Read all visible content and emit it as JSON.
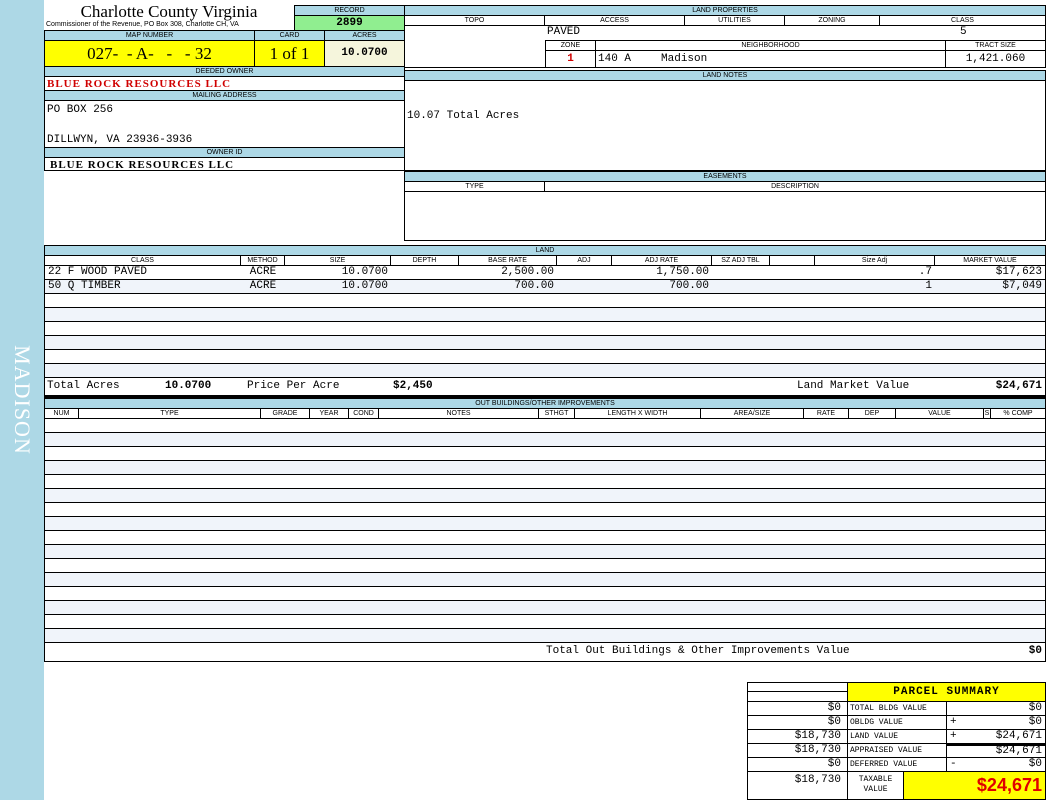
{
  "sidebar": {
    "label": "MADISON",
    "color": "#add8e6"
  },
  "header": {
    "title": "Charlotte County Virginia",
    "subtitle": "Commissioner of the Revenue, PO Box 308, Charlotte CH, VA"
  },
  "record": {
    "label": "RECORD",
    "value": "2899"
  },
  "map": {
    "map_label": "MAP NUMBER",
    "map_value": "027-  - A-   -   - 32",
    "card_label": "CARD",
    "card_value": "1 of 1",
    "acres_label": "ACRES",
    "acres_value": "10.0700"
  },
  "owner": {
    "deeded_label": "DEEDED OWNER",
    "deeded_value": "BLUE ROCK RESOURCES LLC",
    "mailing_label": "MAILING ADDRESS",
    "address_line1": "PO BOX 256",
    "address_line2": "DILLWYN, VA 23936-3936",
    "owner_id_label": "OWNER ID",
    "owner_id_value": "BLUE ROCK RESOURCES LLC"
  },
  "land_properties": {
    "title": "LAND PROPERTIES",
    "topo_label": "TOPO",
    "access_label": "ACCESS",
    "utilities_label": "UTILITIES",
    "zoning_label": "ZONING",
    "class_label": "CLASS",
    "access_value": "PAVED",
    "class_value": "5",
    "zone_label": "ZONE",
    "neighborhood_label": "NEIGHBORHOOD",
    "tract_label": "TRACT SIZE",
    "zone_value": "1",
    "neighborhood_code": "140 A",
    "neighborhood_name": "Madison",
    "tract_value": "1,421.060"
  },
  "land_notes": {
    "title": "LAND NOTES",
    "text": "10.07 Total Acres"
  },
  "easements": {
    "title": "EASEMENTS",
    "type_label": "TYPE",
    "description_label": "DESCRIPTION"
  },
  "land": {
    "title": "LAND",
    "columns": [
      "CLASS",
      "METHOD",
      "SIZE",
      "DEPTH",
      "BASE RATE",
      "ADJ",
      "ADJ RATE",
      "SZ ADJ TBL",
      "",
      "Size Adj",
      "MARKET VALUE"
    ],
    "rows": [
      [
        "22 F WOOD PAVED",
        "ACRE",
        "10.0700",
        "",
        "2,500.00",
        "",
        "1,750.00",
        "",
        "",
        ".7",
        "$17,623"
      ],
      [
        "50 Q TIMBER",
        "ACRE",
        "10.0700",
        "",
        "700.00",
        "",
        "700.00",
        "",
        "",
        "1",
        "$7,049"
      ]
    ],
    "total_acres_label": "Total Acres",
    "total_acres_value": "10.0700",
    "ppa_label": "Price Per Acre",
    "ppa_value": "$2,450",
    "market_label": "Land Market Value",
    "market_value": "$24,671"
  },
  "outbuildings": {
    "title": "OUT BUILDINGS/OTHER IMPROVEMENTS",
    "columns": [
      "NUM",
      "TYPE",
      "GRADE",
      "YEAR",
      "COND",
      "NOTES",
      "STHGT",
      "LENGTH X WIDTH",
      "AREA/SIZE",
      "RATE",
      "DEP",
      "VALUE",
      "S",
      "% COMP"
    ],
    "total_label": "Total Out Buildings & Other Improvements Value",
    "total_value": "$0"
  },
  "summary": {
    "title": "PARCEL SUMMARY",
    "rows": [
      {
        "prior": "$0",
        "label": "TOTAL BLDG VALUE",
        "op": "",
        "value": "$0"
      },
      {
        "prior": "$0",
        "label": "OBLDG VALUE",
        "op": "+",
        "value": "$0"
      },
      {
        "prior": "$18,730",
        "label": "LAND VALUE",
        "op": "+",
        "value": "$24,671"
      },
      {
        "prior": "$18,730",
        "label": "APPRAISED VALUE",
        "op": "",
        "value": "$24,671"
      },
      {
        "prior": "$0",
        "label": "DEFERRED VALUE",
        "op": "-",
        "value": "$0"
      }
    ],
    "taxable_prior": "$18,730",
    "taxable_label": "TAXABLE VALUE",
    "taxable_value": "$24,671"
  }
}
